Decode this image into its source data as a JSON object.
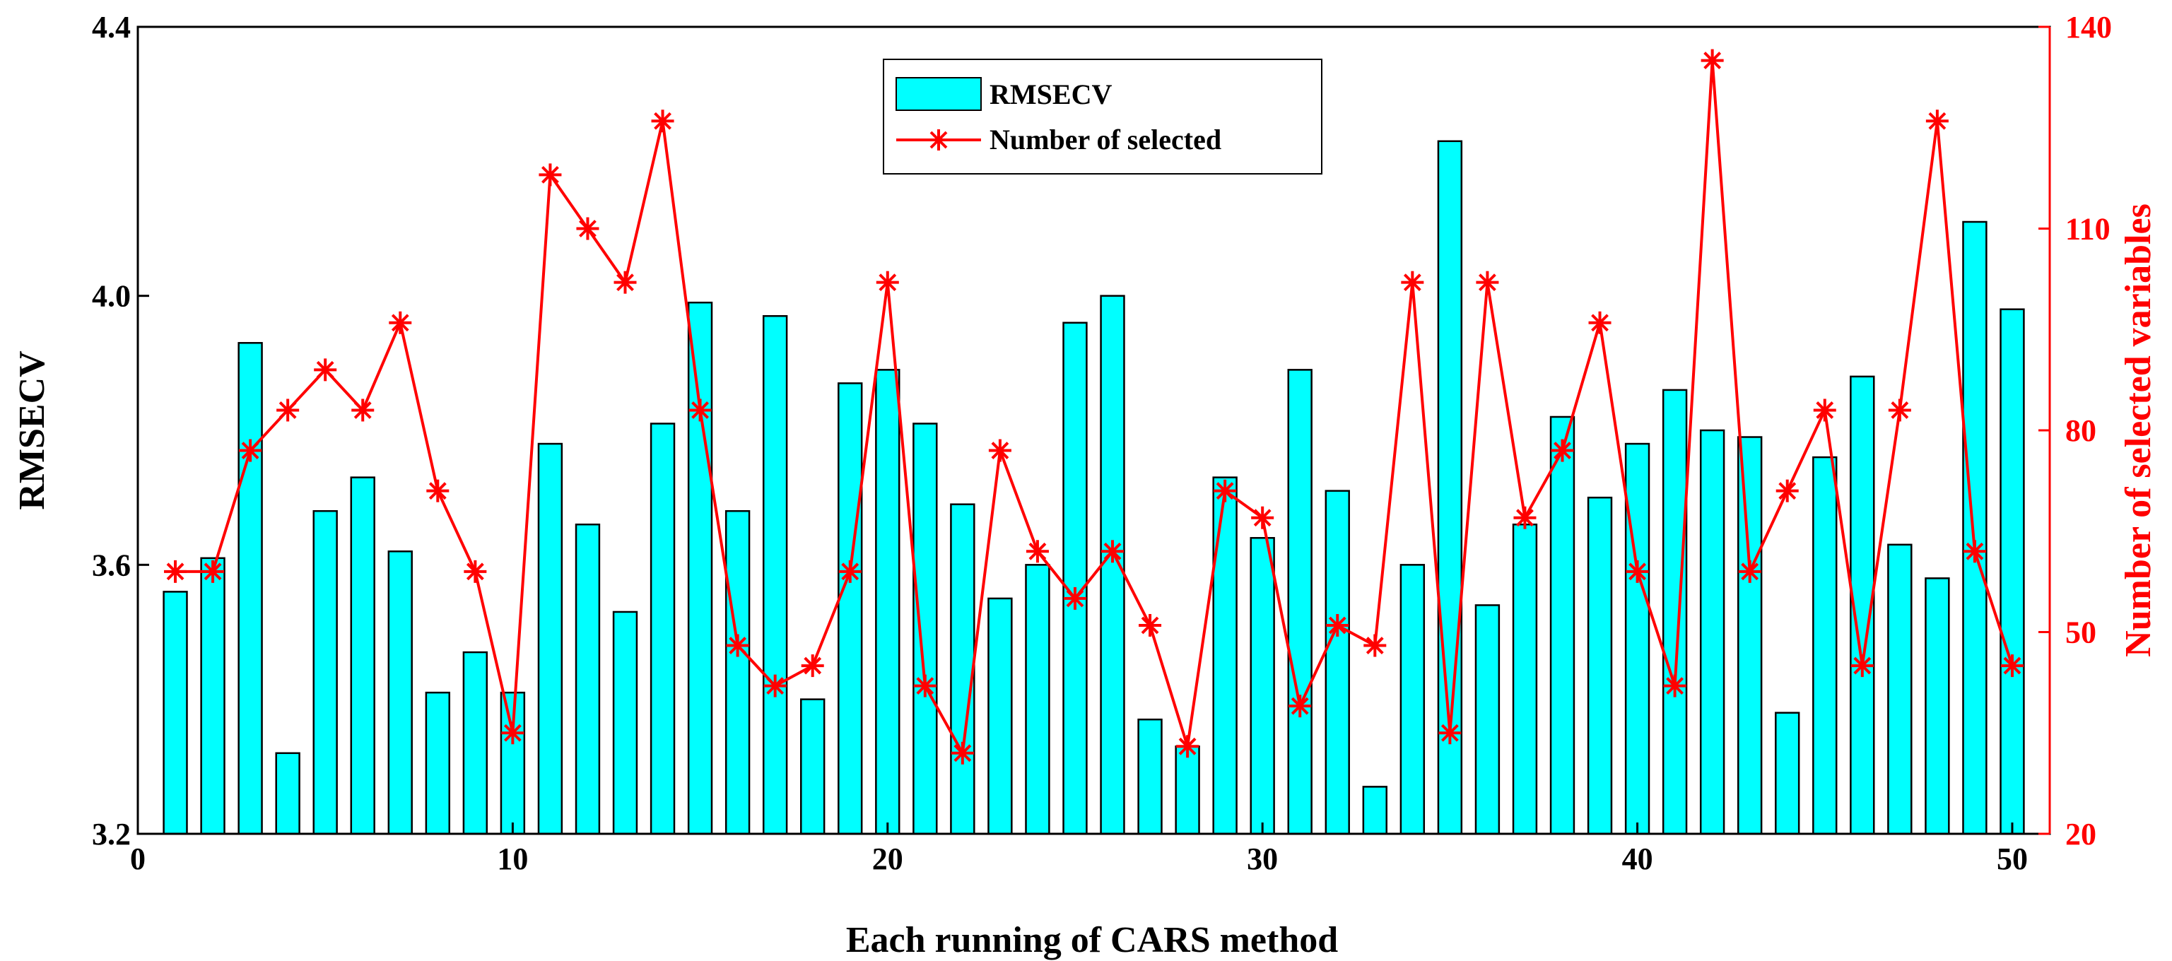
{
  "chart_data": {
    "type": "bar+line",
    "x_label": "Each running of CARS method",
    "y_left_label": "RMSECV",
    "y_right_label": "Number of selected variables",
    "x_range": [
      0,
      51
    ],
    "x_ticks": [
      0,
      10,
      20,
      30,
      40,
      50
    ],
    "y_left_range": [
      3.2,
      4.4
    ],
    "y_left_ticks": [
      "3.2",
      "3.6",
      "4.0",
      "4.4"
    ],
    "y_right_range": [
      20,
      140
    ],
    "y_right_ticks": [
      "20",
      "50",
      "80",
      "110",
      "140"
    ],
    "grid": false,
    "legend_position": "top-center",
    "colors": {
      "bar_fill": "#00ffff",
      "bar_edge": "#000000",
      "line": "#ff0000",
      "left_axis": "#000000",
      "right_axis": "#ff0000"
    },
    "series": [
      {
        "name": "RMSECV",
        "type": "bar",
        "axis": "left",
        "x": [
          1,
          2,
          3,
          4,
          5,
          6,
          7,
          8,
          9,
          10,
          11,
          12,
          13,
          14,
          15,
          16,
          17,
          18,
          19,
          20,
          21,
          22,
          23,
          24,
          25,
          26,
          27,
          28,
          29,
          30,
          31,
          32,
          33,
          34,
          35,
          36,
          37,
          38,
          39,
          40,
          41,
          42,
          43,
          44,
          45,
          46,
          47,
          48,
          49,
          50
        ],
        "values": [
          3.56,
          3.61,
          3.93,
          3.32,
          3.68,
          3.73,
          3.62,
          3.41,
          3.47,
          3.41,
          3.78,
          3.66,
          3.53,
          3.81,
          3.99,
          3.68,
          3.97,
          3.4,
          3.87,
          3.89,
          3.81,
          3.69,
          3.55,
          3.6,
          3.96,
          4.0,
          3.37,
          3.33,
          3.73,
          3.64,
          3.89,
          3.71,
          3.27,
          3.6,
          4.23,
          3.54,
          3.66,
          3.82,
          3.7,
          3.78,
          3.86,
          3.8,
          3.79,
          3.38,
          3.76,
          3.88,
          3.63,
          3.58,
          4.11,
          3.98
        ]
      },
      {
        "name": "Number of selected",
        "type": "line",
        "axis": "right",
        "marker": "asterisk",
        "x": [
          1,
          2,
          3,
          4,
          5,
          6,
          7,
          8,
          9,
          10,
          11,
          12,
          13,
          14,
          15,
          16,
          17,
          18,
          19,
          20,
          21,
          22,
          23,
          24,
          25,
          26,
          27,
          28,
          29,
          30,
          31,
          32,
          33,
          34,
          35,
          36,
          37,
          38,
          39,
          40,
          41,
          42,
          43,
          44,
          45,
          46,
          47,
          48,
          49,
          50
        ],
        "values": [
          59,
          59,
          77,
          83,
          89,
          83,
          96,
          71,
          59,
          35,
          118,
          110,
          102,
          126,
          83,
          48,
          42,
          45,
          59,
          102,
          42,
          32,
          77,
          62,
          55,
          62,
          51,
          33,
          71,
          67,
          39,
          51,
          48,
          102,
          35,
          102,
          67,
          77,
          96,
          59,
          42,
          135,
          59,
          71,
          83,
          45,
          83,
          126,
          62,
          45
        ]
      }
    ]
  }
}
